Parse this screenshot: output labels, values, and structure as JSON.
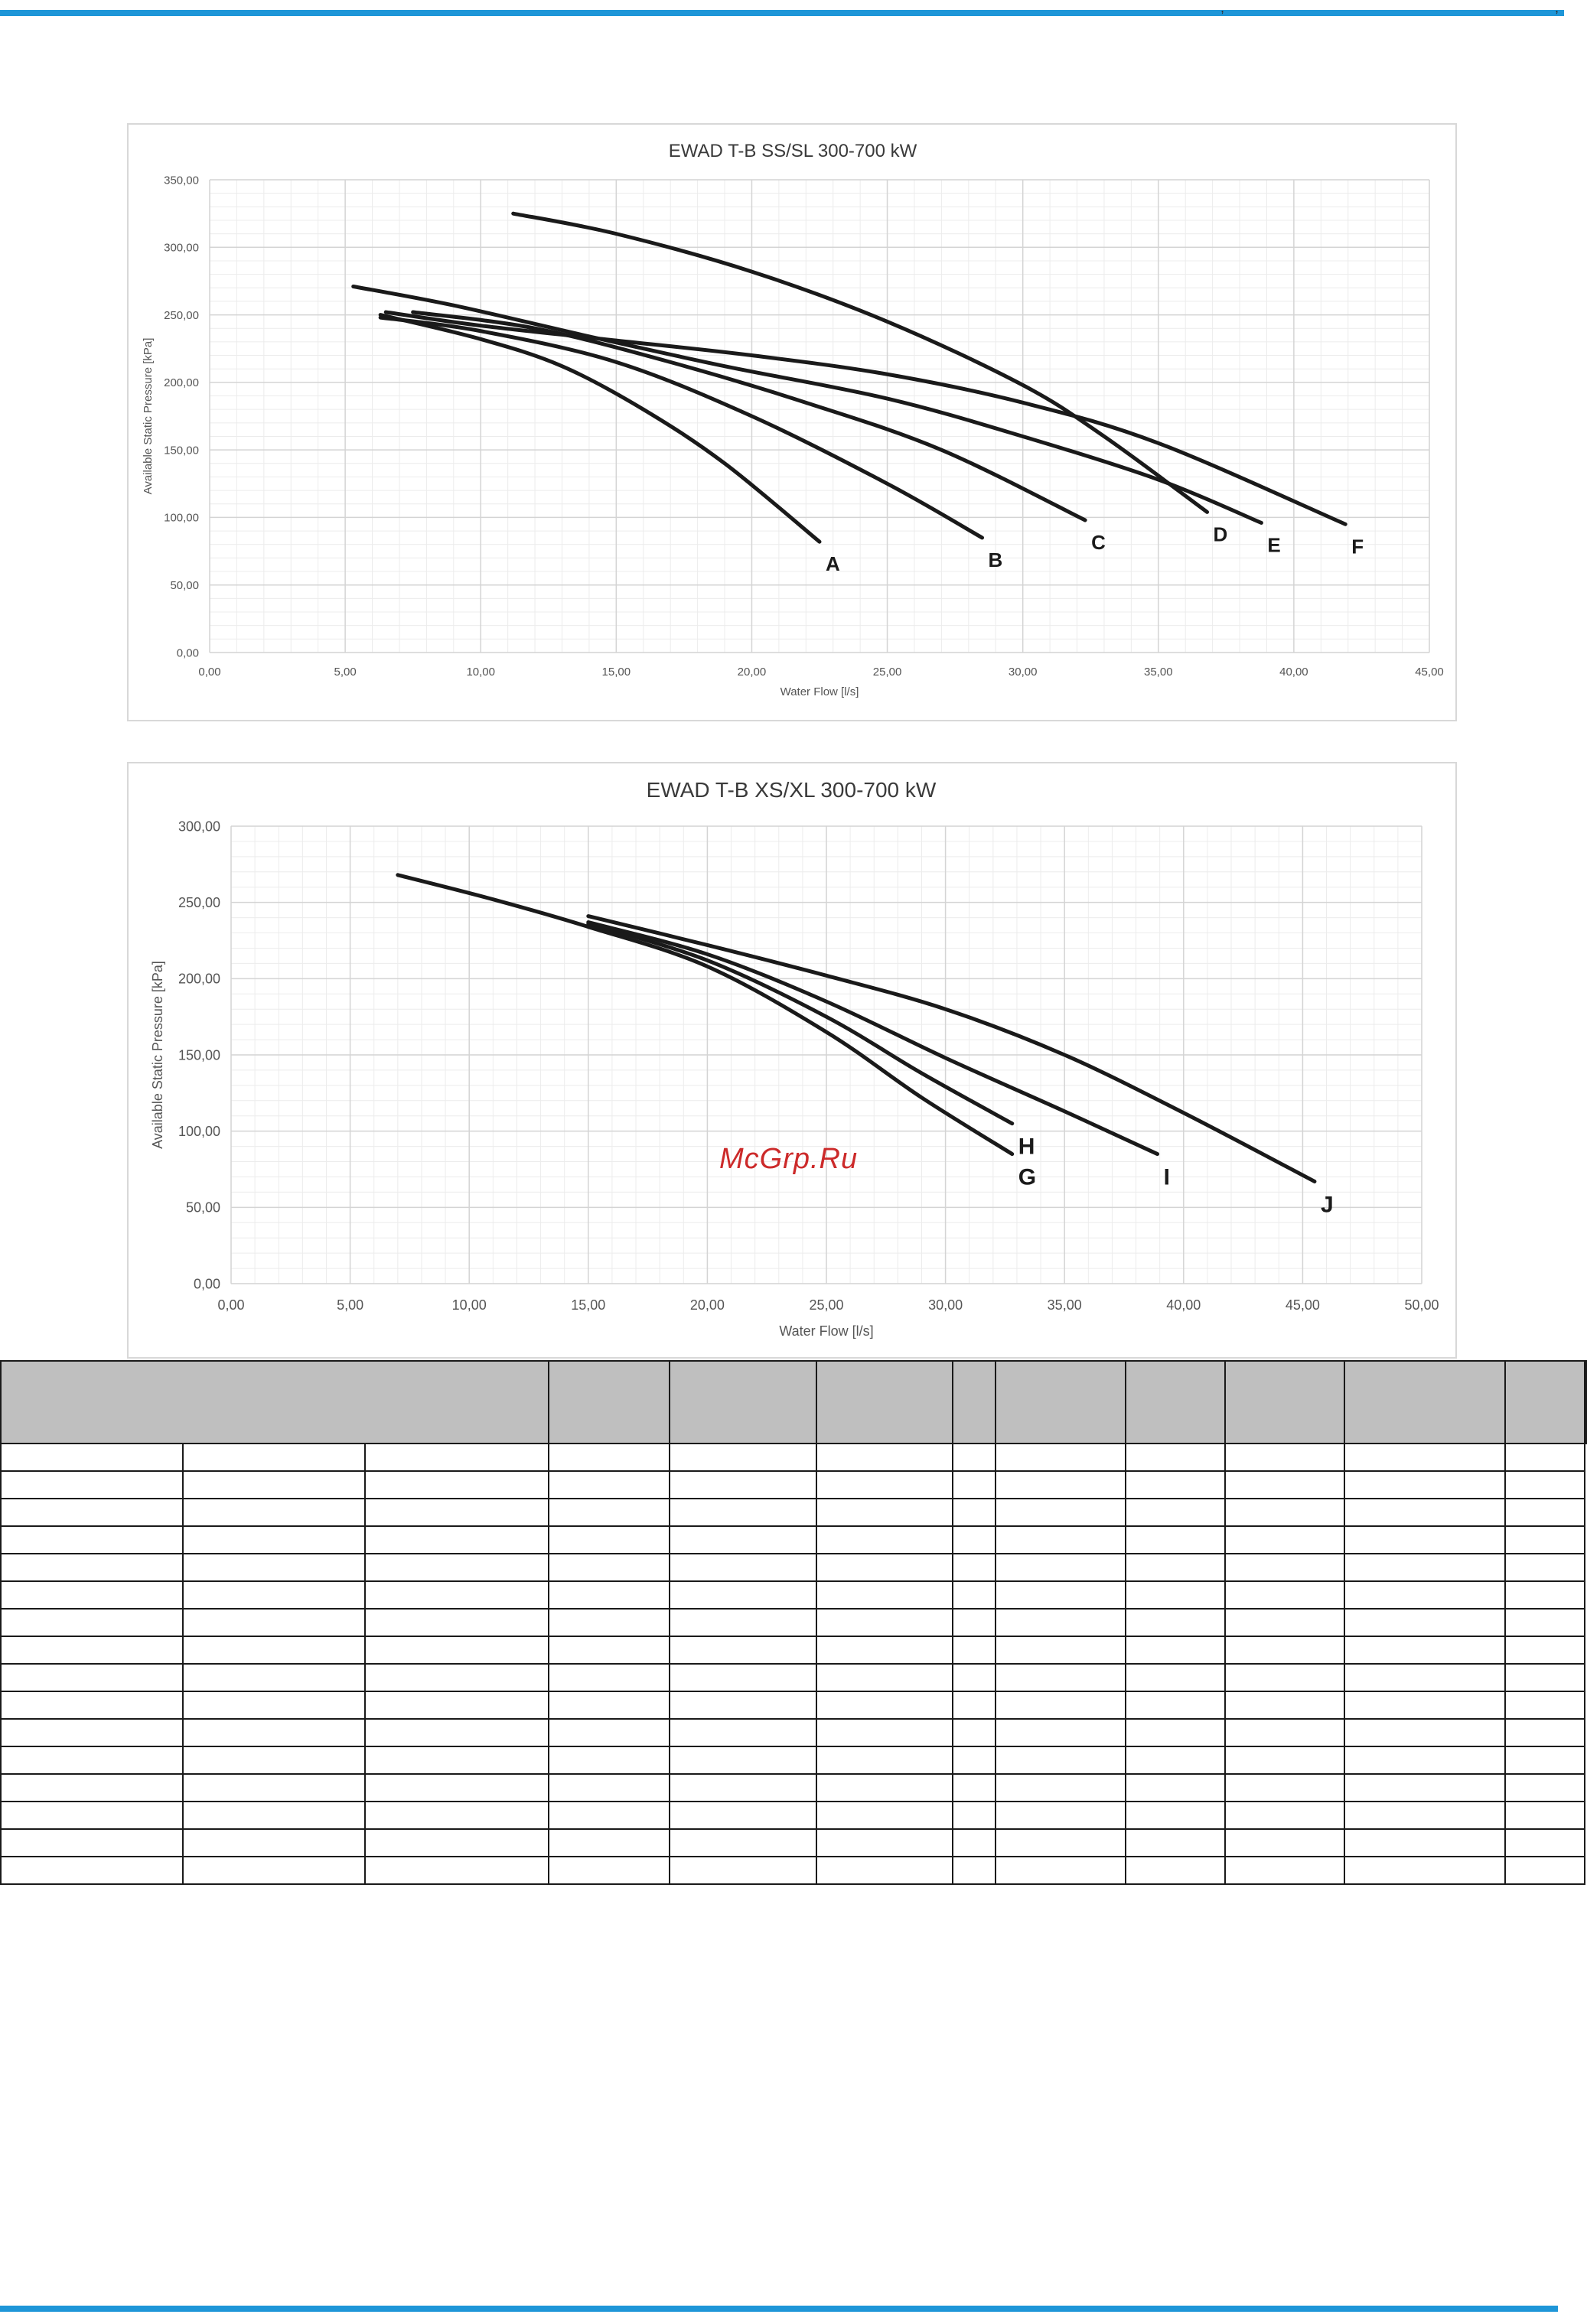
{
  "header": {
    "corner_mark": ","
  },
  "watermark": "McGrp.Ru",
  "chart_data": [
    {
      "type": "line",
      "title": "EWAD T-B SS/SL 300-700 kW",
      "xlabel": "Water Flow [l/s]",
      "ylabel": "Available Static Pressure [kPa]",
      "xlim": [
        0,
        45
      ],
      "ylim": [
        0,
        350
      ],
      "x_ticks": [
        "0,00",
        "5,00",
        "10,00",
        "15,00",
        "20,00",
        "25,00",
        "30,00",
        "35,00",
        "40,00",
        "45,00"
      ],
      "y_ticks": [
        "0,00",
        "50,00",
        "100,00",
        "150,00",
        "200,00",
        "250,00",
        "300,00",
        "350,00"
      ],
      "grid": true,
      "series": [
        {
          "name": "A",
          "points": [
            [
              6.3,
              250
            ],
            [
              10,
              232
            ],
            [
              13,
              212
            ],
            [
              16,
              180
            ],
            [
              19,
              140
            ],
            [
              22.5,
              82
            ]
          ]
        },
        {
          "name": "B",
          "points": [
            [
              6.3,
              248
            ],
            [
              10,
              238
            ],
            [
              15,
              215
            ],
            [
              20,
              175
            ],
            [
              25,
              125
            ],
            [
              28.5,
              85
            ]
          ]
        },
        {
          "name": "C",
          "points": [
            [
              7.5,
              252
            ],
            [
              12,
              240
            ],
            [
              17,
              215
            ],
            [
              22,
              185
            ],
            [
              27,
              150
            ],
            [
              32.3,
              98
            ]
          ]
        },
        {
          "name": "D",
          "points": [
            [
              11.2,
              325
            ],
            [
              15,
              310
            ],
            [
              20,
              282
            ],
            [
              25,
              245
            ],
            [
              30,
              198
            ],
            [
              33,
              160
            ],
            [
              36.8,
              104
            ]
          ]
        },
        {
          "name": "E",
          "points": [
            [
              5.3,
              271
            ],
            [
              9,
              257
            ],
            [
              14,
              234
            ],
            [
              19,
              212
            ],
            [
              25,
              188
            ],
            [
              30,
              160
            ],
            [
              35,
              128
            ],
            [
              38.8,
              96
            ]
          ]
        },
        {
          "name": "F",
          "points": [
            [
              6.5,
              252
            ],
            [
              10,
              242
            ],
            [
              15,
              231
            ],
            [
              20,
              220
            ],
            [
              25,
              206
            ],
            [
              30,
              185
            ],
            [
              35,
              155
            ],
            [
              41.9,
              95
            ]
          ]
        }
      ]
    },
    {
      "type": "line",
      "title": "EWAD T-B XS/XL 300-700 kW",
      "xlabel": "Water Flow [l/s]",
      "ylabel": "Available Static Pressure [kPa]",
      "xlim": [
        0,
        50
      ],
      "ylim": [
        0,
        300
      ],
      "x_ticks": [
        "0,00",
        "5,00",
        "10,00",
        "15,00",
        "20,00",
        "25,00",
        "30,00",
        "35,00",
        "40,00",
        "45,00",
        "50,00"
      ],
      "y_ticks": [
        "0,00",
        "50,00",
        "100,00",
        "150,00",
        "200,00",
        "250,00",
        "300,00"
      ],
      "grid": true,
      "series": [
        {
          "name": "G",
          "points": [
            [
              7,
              268
            ],
            [
              11,
              252
            ],
            [
              15,
              234
            ],
            [
              20,
              208
            ],
            [
              25,
              165
            ],
            [
              29,
              122
            ],
            [
              32.8,
              85
            ]
          ]
        },
        {
          "name": "H",
          "points": [
            [
              15,
              236
            ],
            [
              20,
              212
            ],
            [
              25,
              175
            ],
            [
              29,
              138
            ],
            [
              32.8,
              105
            ]
          ]
        },
        {
          "name": "I",
          "points": [
            [
              15,
              237
            ],
            [
              20,
              216
            ],
            [
              25,
              185
            ],
            [
              30,
              148
            ],
            [
              35,
              113
            ],
            [
              38.9,
              85
            ]
          ]
        },
        {
          "name": "J",
          "points": [
            [
              15,
              241
            ],
            [
              20,
              222
            ],
            [
              25,
              202
            ],
            [
              30,
              180
            ],
            [
              35,
              150
            ],
            [
              40,
              112
            ],
            [
              45.5,
              67
            ]
          ]
        }
      ]
    }
  ],
  "table": {
    "header_cells": [
      "",
      "",
      "",
      "",
      "",
      "",
      "",
      "",
      "",
      "",
      ""
    ],
    "body_row_count": 16
  }
}
